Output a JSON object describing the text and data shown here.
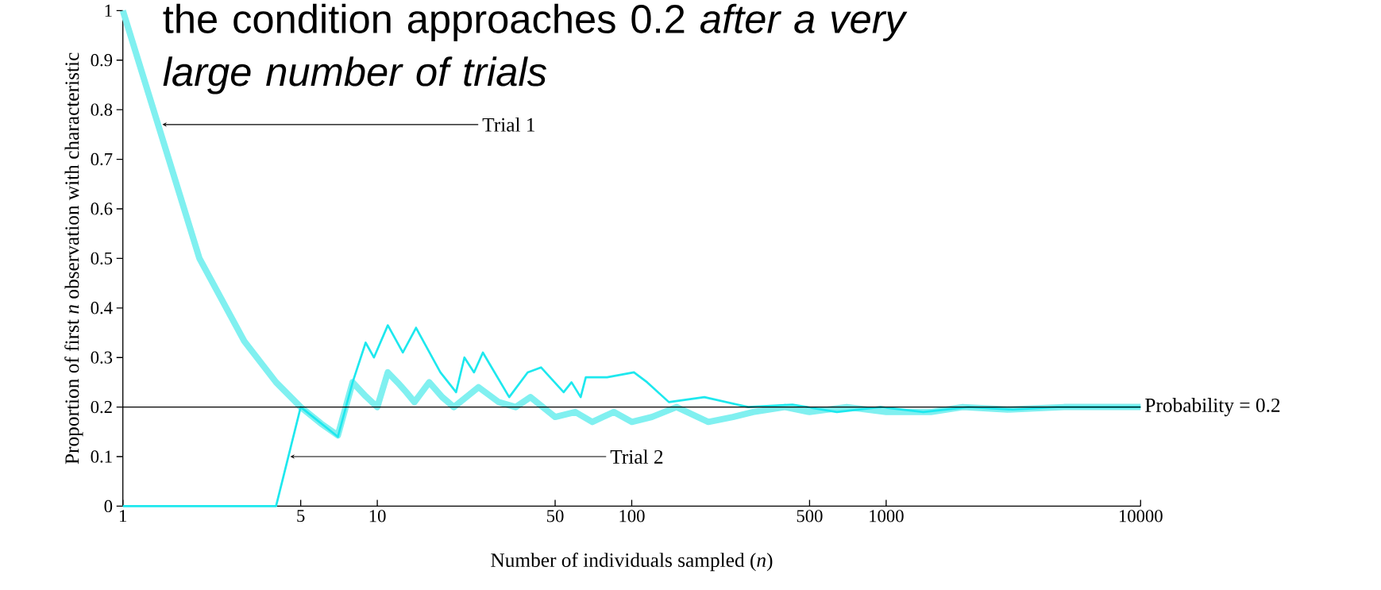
{
  "chart_data": {
    "type": "line",
    "title": "the condition approaches 0.2 *after a very large number of trials*",
    "xlabel": "Number of individuals sampled (*n*)",
    "ylabel": "Proportion of first *n* observation with characteristic",
    "log": "x",
    "xlim": [
      1,
      10000
    ],
    "ylim": [
      0,
      1
    ],
    "xticks": [
      1,
      5,
      10,
      50,
      100,
      500,
      1000,
      10000
    ],
    "yticks": [
      0,
      0.1,
      0.2,
      0.3,
      0.4,
      0.5,
      0.6,
      0.7,
      0.8,
      0.9,
      1
    ],
    "grid": false,
    "marker": "none",
    "ref_lines": [
      {
        "axis": "y",
        "value": 0.2,
        "label": "Probability = 0.2",
        "color": "#000000"
      }
    ],
    "annotations": [
      {
        "text": "Trial 1",
        "x": 1.43,
        "y": 0.77
      },
      {
        "text": "Trial 2",
        "x": 4.55,
        "y": 0.1
      }
    ],
    "series": [
      {
        "color": "#80f0f0",
        "x": [
          1,
          2,
          3,
          4,
          5,
          6,
          7,
          8,
          9,
          10,
          11,
          12,
          13,
          14,
          16,
          18,
          20,
          25,
          30,
          35,
          40,
          50,
          60,
          70,
          85,
          100,
          120,
          150,
          200,
          250,
          300,
          400,
          500,
          700,
          1000,
          1500,
          2000,
          3000,
          5000,
          7000,
          10000
        ],
        "values": [
          1,
          0.5,
          0.333,
          0.25,
          0.2,
          0.167,
          0.143,
          0.25,
          0.222,
          0.2,
          0.27,
          0.25,
          0.23,
          0.21,
          0.25,
          0.22,
          0.2,
          0.24,
          0.21,
          0.2,
          0.22,
          0.18,
          0.19,
          0.17,
          0.19,
          0.17,
          0.18,
          0.2,
          0.17,
          0.18,
          0.19,
          0.2,
          0.19,
          0.2,
          0.19,
          0.19,
          0.2,
          0.195,
          0.2,
          0.2,
          0.2
        ]
      },
      {
        "color": "#1ee8ee",
        "x": [
          1,
          4,
          5,
          7,
          8,
          9,
          9.7,
          11,
          12.6,
          14.2,
          17.7,
          20.4,
          22,
          24,
          26,
          33,
          39,
          44,
          54,
          58,
          63,
          66,
          80,
          102,
          115,
          140,
          193,
          287,
          428,
          640,
          950,
          1400,
          2100,
          3150,
          4700,
          10000
        ],
        "values": [
          0,
          0,
          0.2,
          0.14,
          0.25,
          0.33,
          0.3,
          0.365,
          0.31,
          0.36,
          0.27,
          0.23,
          0.3,
          0.27,
          0.31,
          0.22,
          0.27,
          0.28,
          0.23,
          0.25,
          0.22,
          0.26,
          0.26,
          0.27,
          0.25,
          0.21,
          0.22,
          0.2,
          0.205,
          0.19,
          0.2,
          0.19,
          0.2,
          0.195,
          0.2,
          0.2
        ]
      }
    ]
  }
}
